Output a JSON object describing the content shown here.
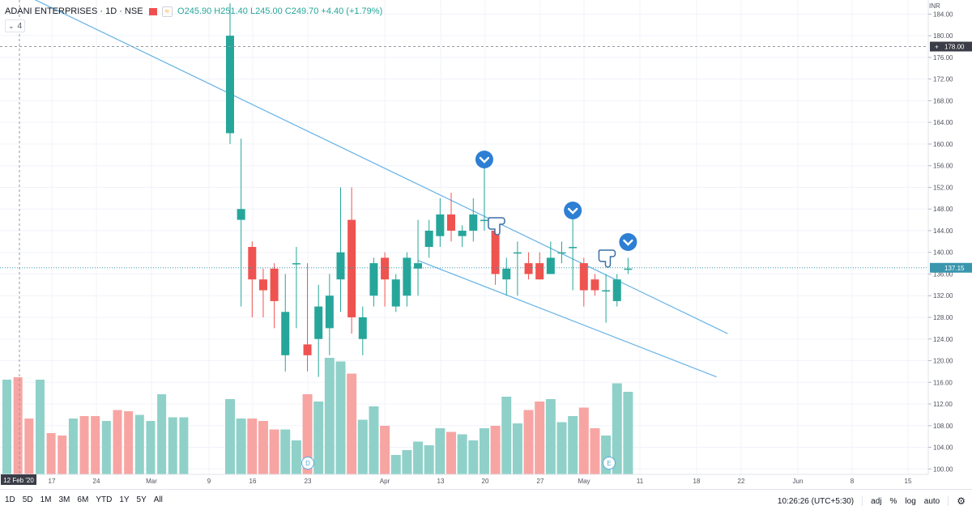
{
  "header": {
    "symbol": "ADANI ENTERPRISES · 1D · NSE",
    "compare_icon": "≈",
    "ohlc": "O245.90 H251.40 L245.00 C249.70 +4.40 (+1.79%)"
  },
  "indicator": {
    "chevron": "⌄",
    "count": "4"
  },
  "currency": "INR",
  "bottom_bar": {
    "ranges": [
      "1D",
      "5D",
      "1M",
      "3M",
      "6M",
      "YTD",
      "1Y",
      "5Y",
      "All"
    ],
    "time": "10:26:26 (UTC+5:30)",
    "opts": [
      "adj",
      "%",
      "log",
      "auto"
    ],
    "gear_icon": "settings-icon"
  },
  "colors": {
    "up": "#26a69a",
    "down": "#ef5350",
    "vol_up": "#8fd1c9",
    "vol_down": "#f7a5a3",
    "trend": "#67b3e6",
    "marker": "#2d7fd4",
    "crosshair_label": "#3a3d47",
    "price_label": "#3a96ad"
  },
  "chart_data": {
    "type": "candlestick",
    "y_axis_ticks": [
      184.0,
      180.0,
      176.0,
      172.0,
      168.0,
      164.0,
      160.0,
      156.0,
      152.0,
      148.0,
      144.0,
      140.0,
      136.0,
      132.0,
      128.0,
      124.0,
      120.0,
      116.0,
      112.0,
      108.0,
      104.0,
      100.0
    ],
    "ylim": [
      99,
      186
    ],
    "x_axis_ticks": [
      "17",
      "24",
      "Mar",
      "9",
      "16",
      "23",
      "Apr",
      "13",
      "20",
      "27",
      "May",
      "11",
      "18",
      "22",
      "Jun",
      "8",
      "15"
    ],
    "x_axis_date_label": "12 Feb '20",
    "crosshair_price": "178.00",
    "last_price": "137.15",
    "candles": [
      {
        "o": 162,
        "h": 186,
        "l": 160,
        "c": 180
      },
      {
        "o": 146,
        "h": 161,
        "l": 130,
        "c": 148
      },
      {
        "o": 141,
        "h": 142,
        "l": 128,
        "c": 135
      },
      {
        "o": 135,
        "h": 137,
        "l": 128,
        "c": 133
      },
      {
        "o": 137,
        "h": 138,
        "l": 126,
        "c": 131
      },
      {
        "o": 121,
        "h": 136,
        "l": 118,
        "c": 129
      },
      {
        "o": 138,
        "h": 141,
        "l": 126,
        "c": 138
      },
      {
        "o": 123,
        "h": 138,
        "l": 118,
        "c": 121
      },
      {
        "o": 124,
        "h": 134,
        "l": 117,
        "c": 130
      },
      {
        "o": 126,
        "h": 136,
        "l": 121,
        "c": 132
      },
      {
        "o": 135,
        "h": 152,
        "l": 129,
        "c": 140
      },
      {
        "o": 146,
        "h": 152,
        "l": 125,
        "c": 128
      },
      {
        "o": 124,
        "h": 130,
        "l": 121,
        "c": 128
      },
      {
        "o": 132,
        "h": 139,
        "l": 130,
        "c": 138
      },
      {
        "o": 139,
        "h": 140,
        "l": 130,
        "c": 135
      },
      {
        "o": 130,
        "h": 136,
        "l": 129,
        "c": 135
      },
      {
        "o": 132,
        "h": 140,
        "l": 130,
        "c": 139
      },
      {
        "o": 137,
        "h": 146,
        "l": 132,
        "c": 138
      },
      {
        "o": 141,
        "h": 146,
        "l": 139,
        "c": 144
      },
      {
        "o": 143,
        "h": 150,
        "l": 141,
        "c": 147
      },
      {
        "o": 147,
        "h": 151,
        "l": 142,
        "c": 144
      },
      {
        "o": 143,
        "h": 145,
        "l": 141,
        "c": 144
      },
      {
        "o": 144,
        "h": 150,
        "l": 142,
        "c": 147
      },
      {
        "o": 146,
        "h": 156,
        "l": 144,
        "c": 146
      },
      {
        "o": 144,
        "h": 144,
        "l": 134,
        "c": 136
      },
      {
        "o": 135,
        "h": 139,
        "l": 132,
        "c": 137
      },
      {
        "o": 140,
        "h": 142,
        "l": 132,
        "c": 140
      },
      {
        "o": 138,
        "h": 140,
        "l": 135,
        "c": 136
      },
      {
        "o": 138,
        "h": 140,
        "l": 135,
        "c": 135
      },
      {
        "o": 136,
        "h": 142,
        "l": 136,
        "c": 139
      },
      {
        "o": 140,
        "h": 142,
        "l": 138,
        "c": 140
      },
      {
        "o": 141,
        "h": 147,
        "l": 133,
        "c": 141
      },
      {
        "o": 138,
        "h": 139,
        "l": 130,
        "c": 133
      },
      {
        "o": 135,
        "h": 136,
        "l": 132,
        "c": 133
      },
      {
        "o": 133,
        "h": 136,
        "l": 127,
        "c": 133
      },
      {
        "o": 131,
        "h": 136,
        "l": 130,
        "c": 135
      },
      {
        "o": 137,
        "h": 139,
        "l": 136,
        "c": 137
      }
    ],
    "volume_heights": [
      0.62,
      0.46,
      0.46,
      0.44,
      0.37,
      0.37,
      0.28,
      0.66,
      0.6,
      0.96,
      0.93,
      0.83,
      0.45,
      0.56,
      0.4,
      0.16,
      0.2,
      0.27,
      0.24,
      0.38,
      0.35,
      0.33,
      0.28,
      0.38,
      0.4,
      0.64,
      0.42,
      0.53,
      0.6,
      0.62,
      0.43,
      0.48,
      0.55,
      0.38,
      0.32,
      0.75,
      0.68
    ],
    "volume_leading": [
      0.78,
      0.8,
      0.46,
      0.78,
      0.34,
      0.32,
      0.46,
      0.48,
      0.48,
      0.44,
      0.53,
      0.52,
      0.49,
      0.44,
      0.66,
      0.47,
      0.47
    ],
    "trendlines": [
      {
        "from": [
          -18,
          187
        ],
        "to": [
          45,
          125
        ]
      },
      {
        "from": [
          17,
          138.5
        ],
        "to": [
          44,
          117
        ]
      }
    ],
    "markers": {
      "arrows_at": [
        23,
        31,
        36
      ],
      "pointers_at": [
        23,
        33
      ],
      "events": [
        {
          "at": 6,
          "label": "D"
        },
        {
          "at": 34,
          "label": "E"
        }
      ]
    },
    "legend": ""
  }
}
